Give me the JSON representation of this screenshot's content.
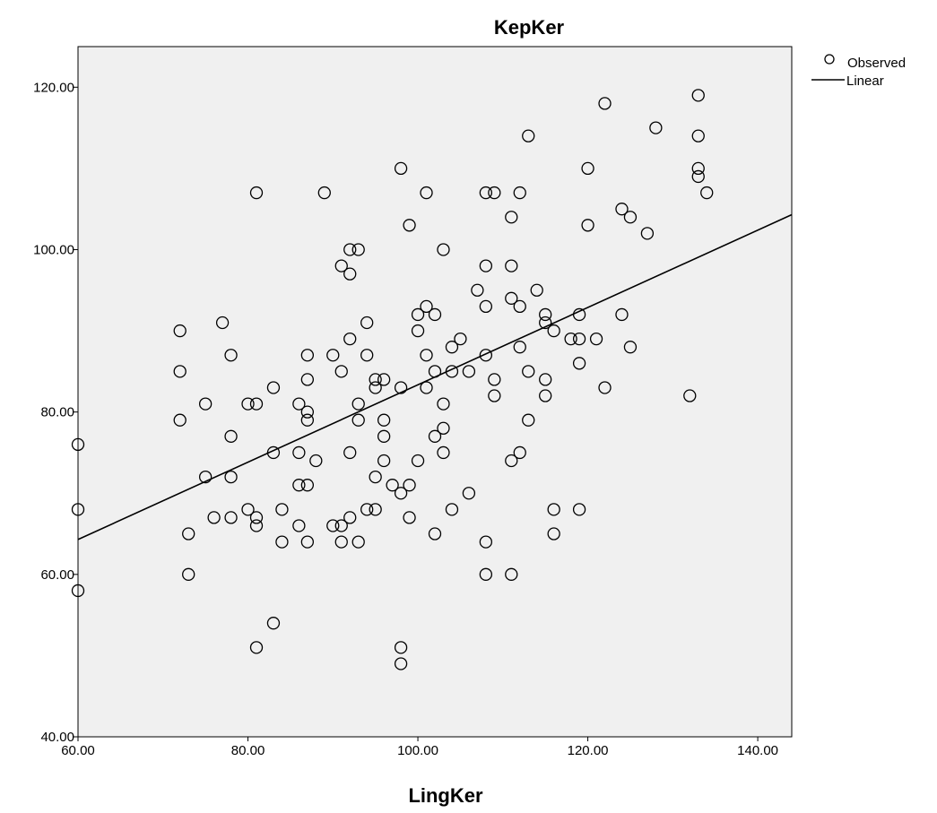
{
  "chart_data": {
    "type": "scatter",
    "title": "KepKer",
    "xlabel": "LingKer",
    "ylabel": "",
    "xlim": [
      60,
      144
    ],
    "ylim": [
      40,
      125
    ],
    "xticks": [
      "60.00",
      "80.00",
      "100.00",
      "120.00",
      "140.00"
    ],
    "yticks": [
      "40.00",
      "60.00",
      "80.00",
      "100.00",
      "120.00"
    ],
    "grid": false,
    "legend_position": "top-right",
    "colors": {
      "plot_background": "#f0f0f0",
      "marker": "#000000",
      "line": "#000000"
    },
    "series": [
      {
        "name": "Observed",
        "kind": "scatter",
        "points": [
          [
            60,
            76
          ],
          [
            60,
            68
          ],
          [
            60,
            58
          ],
          [
            72,
            90
          ],
          [
            72,
            85
          ],
          [
            72,
            79
          ],
          [
            73,
            65
          ],
          [
            73,
            60
          ],
          [
            75,
            81
          ],
          [
            75,
            72
          ],
          [
            76,
            67
          ],
          [
            77,
            91
          ],
          [
            78,
            87
          ],
          [
            78,
            77
          ],
          [
            78,
            72
          ],
          [
            78,
            67
          ],
          [
            80,
            81
          ],
          [
            80,
            68
          ],
          [
            81,
            81
          ],
          [
            81,
            107
          ],
          [
            81,
            67
          ],
          [
            81,
            66
          ],
          [
            81,
            51
          ],
          [
            83,
            83
          ],
          [
            83,
            75
          ],
          [
            83,
            54
          ],
          [
            84,
            68
          ],
          [
            84,
            64
          ],
          [
            86,
            81
          ],
          [
            86,
            75
          ],
          [
            86,
            71
          ],
          [
            86,
            66
          ],
          [
            87,
            87
          ],
          [
            87,
            84
          ],
          [
            87,
            80
          ],
          [
            87,
            79
          ],
          [
            87,
            71
          ],
          [
            87,
            64
          ],
          [
            88,
            74
          ],
          [
            89,
            107
          ],
          [
            90,
            87
          ],
          [
            90,
            66
          ],
          [
            91,
            98
          ],
          [
            91,
            85
          ],
          [
            91,
            66
          ],
          [
            91,
            64
          ],
          [
            92,
            100
          ],
          [
            92,
            97
          ],
          [
            92,
            89
          ],
          [
            92,
            75
          ],
          [
            92,
            67
          ],
          [
            93,
            100
          ],
          [
            93,
            81
          ],
          [
            93,
            79
          ],
          [
            93,
            64
          ],
          [
            94,
            91
          ],
          [
            94,
            87
          ],
          [
            94,
            68
          ],
          [
            95,
            84
          ],
          [
            95,
            83
          ],
          [
            95,
            72
          ],
          [
            95,
            68
          ],
          [
            96,
            84
          ],
          [
            96,
            79
          ],
          [
            96,
            77
          ],
          [
            96,
            74
          ],
          [
            97,
            71
          ],
          [
            98,
            110
          ],
          [
            98,
            83
          ],
          [
            98,
            70
          ],
          [
            98,
            51
          ],
          [
            98,
            49
          ],
          [
            99,
            103
          ],
          [
            99,
            71
          ],
          [
            99,
            67
          ],
          [
            100,
            92
          ],
          [
            100,
            90
          ],
          [
            100,
            74
          ],
          [
            101,
            107
          ],
          [
            101,
            93
          ],
          [
            101,
            87
          ],
          [
            101,
            83
          ],
          [
            102,
            92
          ],
          [
            102,
            85
          ],
          [
            102,
            77
          ],
          [
            102,
            65
          ],
          [
            103,
            100
          ],
          [
            103,
            81
          ],
          [
            103,
            78
          ],
          [
            103,
            75
          ],
          [
            104,
            88
          ],
          [
            104,
            85
          ],
          [
            104,
            68
          ],
          [
            105,
            89
          ],
          [
            106,
            85
          ],
          [
            106,
            70
          ],
          [
            107,
            95
          ],
          [
            108,
            107
          ],
          [
            108,
            98
          ],
          [
            108,
            93
          ],
          [
            108,
            87
          ],
          [
            108,
            64
          ],
          [
            108,
            60
          ],
          [
            109,
            107
          ],
          [
            109,
            84
          ],
          [
            109,
            82
          ],
          [
            111,
            104
          ],
          [
            111,
            98
          ],
          [
            111,
            94
          ],
          [
            111,
            74
          ],
          [
            111,
            60
          ],
          [
            112,
            107
          ],
          [
            112,
            93
          ],
          [
            112,
            88
          ],
          [
            112,
            75
          ],
          [
            113,
            114
          ],
          [
            113,
            85
          ],
          [
            113,
            79
          ],
          [
            114,
            95
          ],
          [
            115,
            92
          ],
          [
            115,
            91
          ],
          [
            115,
            84
          ],
          [
            115,
            82
          ],
          [
            116,
            90
          ],
          [
            116,
            68
          ],
          [
            116,
            65
          ],
          [
            118,
            89
          ],
          [
            119,
            92
          ],
          [
            119,
            89
          ],
          [
            119,
            86
          ],
          [
            119,
            68
          ],
          [
            120,
            110
          ],
          [
            120,
            103
          ],
          [
            121,
            89
          ],
          [
            122,
            118
          ],
          [
            122,
            83
          ],
          [
            124,
            105
          ],
          [
            124,
            92
          ],
          [
            125,
            104
          ],
          [
            125,
            88
          ],
          [
            127,
            102
          ],
          [
            128,
            115
          ],
          [
            132,
            82
          ],
          [
            133,
            119
          ],
          [
            133,
            114
          ],
          [
            133,
            110
          ],
          [
            133,
            109
          ],
          [
            134,
            107
          ]
        ]
      },
      {
        "name": "Linear",
        "kind": "line",
        "points": [
          [
            60,
            64.3
          ],
          [
            144,
            104.3
          ]
        ]
      }
    ]
  }
}
